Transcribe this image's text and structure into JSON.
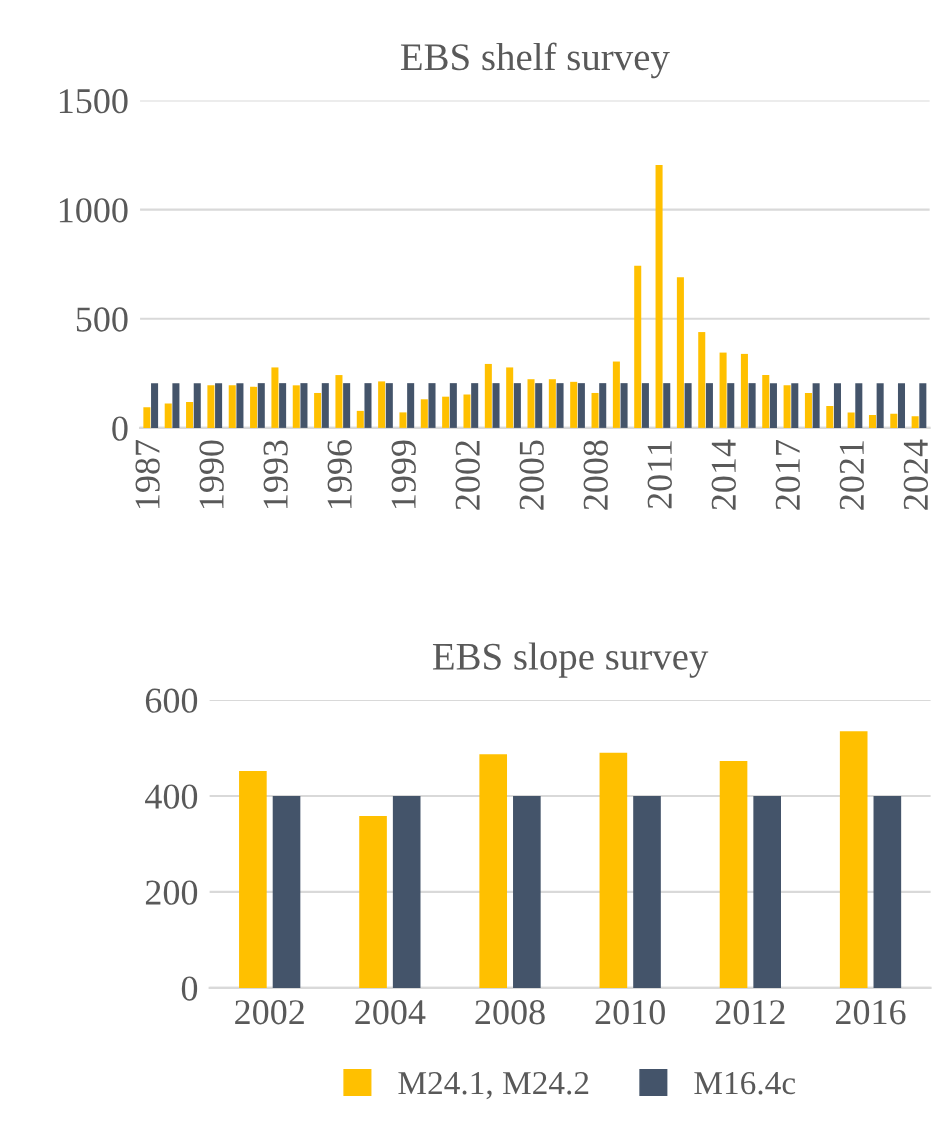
{
  "chart_data": [
    {
      "type": "bar",
      "title": "EBS shelf survey",
      "categories": [
        "1987",
        null,
        null,
        "1990",
        null,
        null,
        "1993",
        null,
        null,
        "1996",
        null,
        null,
        "1999",
        null,
        null,
        "2002",
        null,
        null,
        "2005",
        null,
        null,
        "2008",
        null,
        null,
        "2011",
        null,
        null,
        "2014",
        null,
        null,
        "2017",
        null,
        null,
        "2021",
        null,
        null,
        "2024"
      ],
      "series": [
        {
          "color": "#ffc000",
          "values": [
            94,
            112,
            119,
            195,
            195,
            188,
            277,
            195,
            160,
            242,
            78,
            213,
            71,
            131,
            143,
            153,
            293,
            277,
            223,
            223,
            211,
            160,
            304,
            743,
            1204,
            690,
            439,
            345,
            339,
            242,
            195,
            160,
            100,
            71,
            59,
            65,
            53
          ]
        },
        {
          "color": "#44546a",
          "values": [
            205,
            205,
            205,
            205,
            205,
            205,
            205,
            205,
            205,
            205,
            205,
            205,
            205,
            205,
            205,
            205,
            205,
            205,
            205,
            205,
            205,
            205,
            205,
            205,
            205,
            205,
            205,
            205,
            205,
            205,
            205,
            205,
            205,
            205,
            205,
            205,
            205
          ]
        }
      ],
      "ylim": [
        0,
        1500
      ],
      "yticks": [
        0,
        500,
        1000,
        1500
      ],
      "grid": "y",
      "legend": false
    },
    {
      "type": "bar",
      "title": "EBS slope survey",
      "categories": [
        "2002",
        "2004",
        "2008",
        "2010",
        "2012",
        "2016"
      ],
      "series": [
        {
          "name": "M24.1, M24.2",
          "color": "#ffc000",
          "values": [
            452,
            358,
            487,
            490,
            473,
            535
          ]
        },
        {
          "name": "M16.4c",
          "color": "#44546a",
          "values": [
            400,
            400,
            400,
            400,
            400,
            400
          ]
        }
      ],
      "ylim": [
        0,
        600
      ],
      "yticks": [
        0,
        200,
        400,
        600
      ],
      "grid": "y",
      "legend": "bottom"
    }
  ]
}
